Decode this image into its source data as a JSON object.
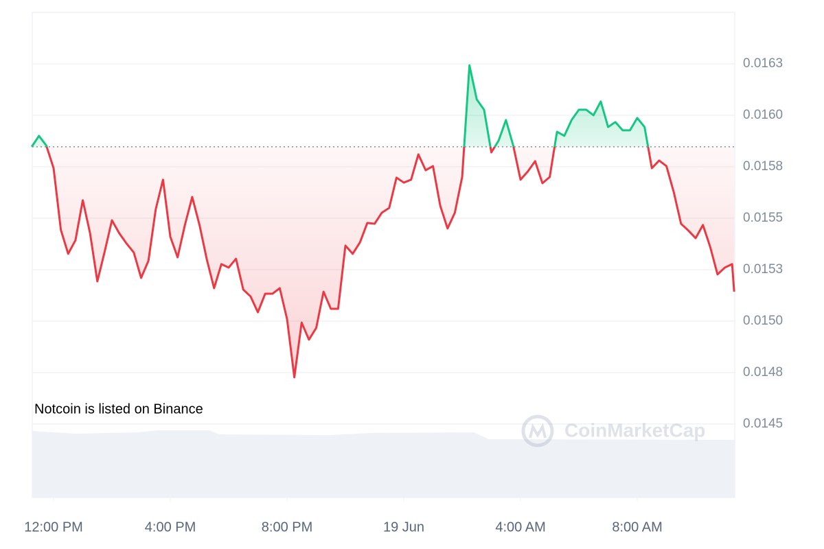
{
  "chart_data": {
    "type": "line",
    "annotation": "Notcoin is listed on Binance",
    "watermark": "CoinMarketCap",
    "baseline": 0.015847,
    "colors": {
      "above": "#16c784",
      "below": "#ea3943"
    },
    "grid": true,
    "xlim": [
      -0.73,
      23.34
    ],
    "xticks": [
      {
        "value": 0,
        "label": "12:00 PM"
      },
      {
        "value": 4,
        "label": "4:00 PM"
      },
      {
        "value": 8,
        "label": "8:00 PM"
      },
      {
        "value": 12,
        "label": "19 Jun"
      },
      {
        "value": 16,
        "label": "4:00 AM"
      },
      {
        "value": 20,
        "label": "8:00 AM"
      }
    ],
    "ylim": [
      0.014143,
      0.0165
    ],
    "yticks": [
      0.0145,
      {
        "value": 0.01475,
        "label": "0.0148"
      },
      {
        "value": 0.015,
        "label": "0.0150"
      },
      {
        "value": 0.01525,
        "label": "0.0153"
      },
      0.0155,
      {
        "value": 0.01575,
        "label": "0.0158"
      },
      {
        "value": 0.016,
        "label": "0.0160"
      },
      {
        "value": 0.01625,
        "label": "0.0163"
      }
    ],
    "x": [
      -0.75,
      -0.5,
      -0.25,
      0,
      0.25,
      0.5,
      0.75,
      1,
      1.25,
      1.5,
      1.75,
      2,
      2.25,
      2.5,
      2.75,
      3,
      3.25,
      3.5,
      3.75,
      4,
      4.25,
      4.5,
      4.75,
      5,
      5.25,
      5.5,
      5.75,
      6,
      6.25,
      6.5,
      6.75,
      7,
      7.25,
      7.5,
      7.75,
      8,
      8.25,
      8.5,
      8.75,
      9,
      9.25,
      9.5,
      9.75,
      10,
      10.25,
      10.5,
      10.75,
      11,
      11.25,
      11.5,
      11.75,
      12,
      12.25,
      12.5,
      12.75,
      13,
      13.25,
      13.5,
      13.75,
      14,
      14.25,
      14.5,
      14.75,
      15,
      15.25,
      15.5,
      15.75,
      16,
      16.25,
      16.5,
      16.75,
      17,
      17.25,
      17.5,
      17.75,
      18,
      18.25,
      18.5,
      18.75,
      19,
      19.25,
      19.5,
      19.75,
      20,
      20.25,
      20.5,
      20.75,
      21,
      21.25,
      21.5,
      21.75,
      22,
      22.25,
      22.5,
      22.75,
      23,
      23.25,
      23.32
    ],
    "values": [
      0.015847,
      0.0159,
      0.015853,
      0.015743,
      0.015443,
      0.015327,
      0.015393,
      0.015587,
      0.015427,
      0.015193,
      0.015337,
      0.01549,
      0.015427,
      0.015377,
      0.015333,
      0.01521,
      0.015293,
      0.015543,
      0.015687,
      0.01541,
      0.01531,
      0.015467,
      0.015603,
      0.015467,
      0.0153,
      0.01516,
      0.015277,
      0.01526,
      0.015303,
      0.015153,
      0.01512,
      0.015043,
      0.015133,
      0.015133,
      0.01516,
      0.01501,
      0.014727,
      0.014993,
      0.01491,
      0.014967,
      0.015143,
      0.01506,
      0.01506,
      0.015367,
      0.015327,
      0.015383,
      0.015477,
      0.015473,
      0.015527,
      0.01555,
      0.015697,
      0.015673,
      0.015687,
      0.01581,
      0.015733,
      0.015753,
      0.01556,
      0.01545,
      0.015527,
      0.0157,
      0.016243,
      0.016077,
      0.016027,
      0.01582,
      0.015877,
      0.015977,
      0.015853,
      0.015687,
      0.015727,
      0.015777,
      0.01567,
      0.0157,
      0.01592,
      0.0159,
      0.015977,
      0.016027,
      0.016027,
      0.016,
      0.016067,
      0.015943,
      0.015967,
      0.015927,
      0.015927,
      0.015987,
      0.015943,
      0.015743,
      0.01578,
      0.015753,
      0.015627,
      0.015473,
      0.01544,
      0.015403,
      0.015467,
      0.01536,
      0.015227,
      0.01526,
      0.015277,
      0.015143
    ]
  }
}
